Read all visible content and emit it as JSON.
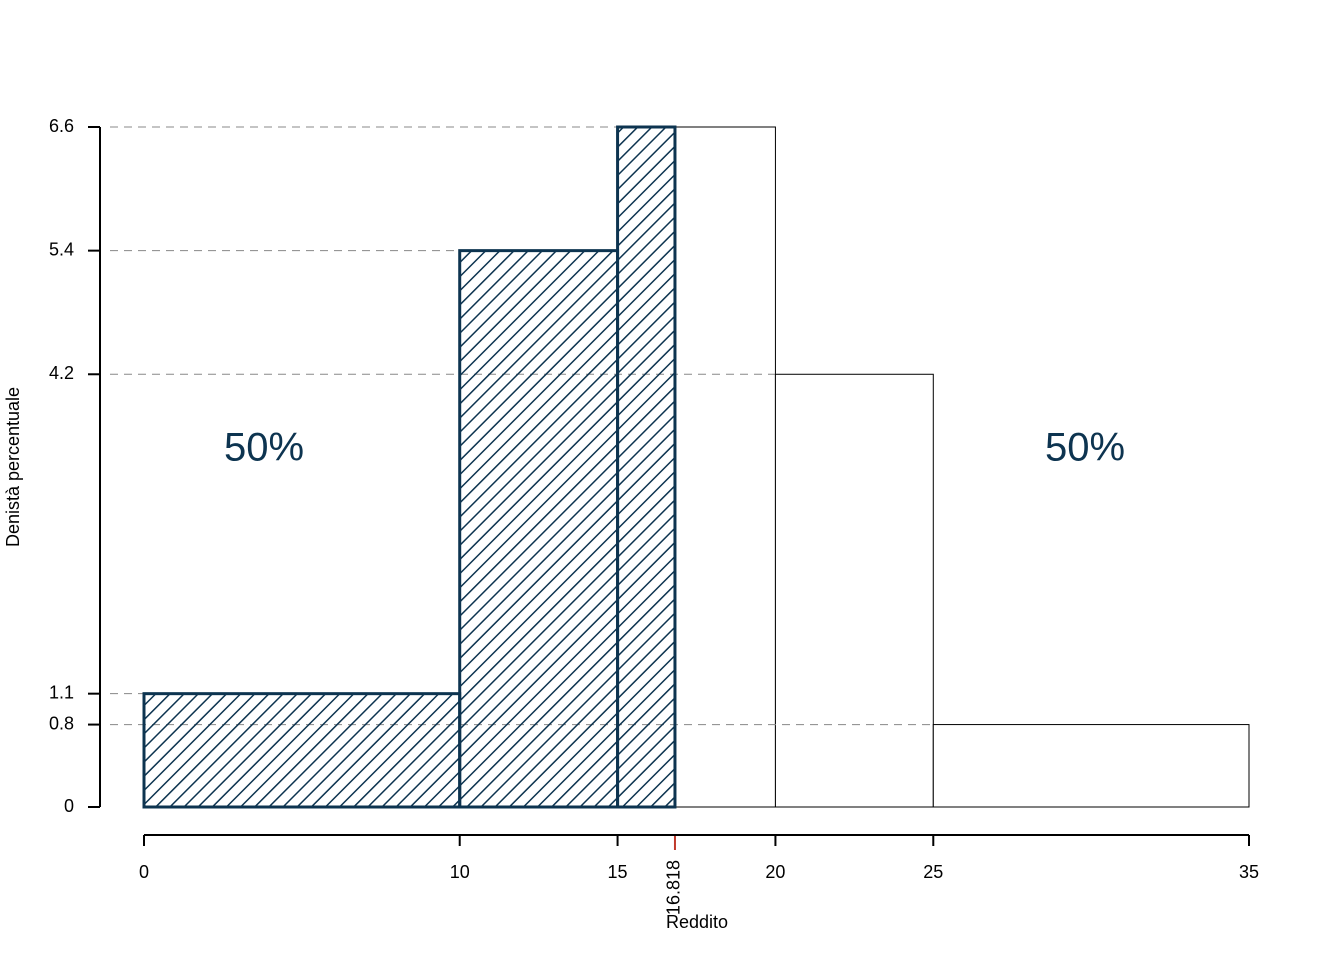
{
  "chart_data": {
    "type": "histogram",
    "xlabel": "Reddito",
    "ylabel": "Denistà percentuale",
    "bins": [
      0,
      10,
      15,
      20,
      25,
      35
    ],
    "values": [
      1.1,
      5.4,
      6.6,
      4.2,
      0.8
    ],
    "median": 16.818,
    "median_color": "#c0392b",
    "hatch_color": "#0d3450",
    "annotations": [
      "50%",
      "50%"
    ],
    "xlim": [
      0,
      35
    ],
    "ylim": [
      0,
      6.6
    ],
    "xticks": [
      0,
      10,
      15,
      20,
      25,
      35
    ],
    "yticks": [
      0,
      0.8,
      1.1,
      4.2,
      5.4,
      6.6
    ],
    "grid": true
  }
}
